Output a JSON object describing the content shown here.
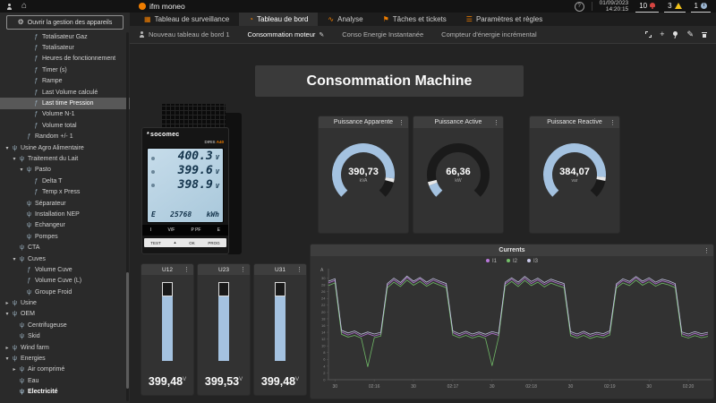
{
  "topbar": {
    "app_name": "ifm moneo",
    "date": "01/09/2023",
    "time": "14:20:15",
    "help_label": "?",
    "badges": [
      {
        "count": "10",
        "icon": "bell-icon",
        "color": "#d64541"
      },
      {
        "count": "3",
        "icon": "warning-icon",
        "color": "#f2c21b"
      },
      {
        "count": "1",
        "icon": "info-icon",
        "color": "#9ab4cf"
      }
    ]
  },
  "nav": {
    "tabs": [
      {
        "label": "Tableau de surveillance",
        "icon": "grid",
        "active": false
      },
      {
        "label": "Tableau de bord",
        "icon": "dashboard",
        "active": true
      },
      {
        "label": "Analyse",
        "icon": "analyse",
        "active": false
      },
      {
        "label": "Tâches et tickets",
        "icon": "tickets",
        "active": false
      },
      {
        "label": "Paramètres et règles",
        "icon": "settings",
        "active": false
      }
    ],
    "accent_color": "#ef7d00"
  },
  "sidebar": {
    "button_label": "Ouvrir la gestion des appareils",
    "items": [
      {
        "label": "Totalisateur Gaz",
        "indent": 3,
        "icon": "fx"
      },
      {
        "label": "Totalisateur",
        "indent": 3,
        "icon": "fx"
      },
      {
        "label": "Heures de fonctionnement",
        "indent": 3,
        "icon": "fx"
      },
      {
        "label": "Timer (s)",
        "indent": 3,
        "icon": "fx"
      },
      {
        "label": "Rampe",
        "indent": 3,
        "icon": "fx"
      },
      {
        "label": "Last Volume calculé",
        "indent": 3,
        "icon": "fx"
      },
      {
        "label": "Last time Pression",
        "indent": 3,
        "icon": "fx",
        "selected": true
      },
      {
        "label": "Volume N-1",
        "indent": 3,
        "icon": "fx"
      },
      {
        "label": "Volume total",
        "indent": 3,
        "icon": "fx"
      },
      {
        "label": "Random +/- 1",
        "indent": 2,
        "icon": "fx"
      },
      {
        "label": "Usine Agro Alimentaire",
        "indent": 0,
        "icon": "node",
        "arrow": "open"
      },
      {
        "label": "Traitement du Lait",
        "indent": 1,
        "icon": "node",
        "arrow": "open"
      },
      {
        "label": "Pasto",
        "indent": 2,
        "icon": "node",
        "arrow": "open"
      },
      {
        "label": "Delta T",
        "indent": 3,
        "icon": "fx"
      },
      {
        "label": "Temp x Press",
        "indent": 3,
        "icon": "fx"
      },
      {
        "label": "Séparateur",
        "indent": 2,
        "icon": "node"
      },
      {
        "label": "Installation NEP",
        "indent": 2,
        "icon": "node"
      },
      {
        "label": "Echangeur",
        "indent": 2,
        "icon": "node"
      },
      {
        "label": "Pompes",
        "indent": 2,
        "icon": "node"
      },
      {
        "label": "CTA",
        "indent": 1,
        "icon": "node"
      },
      {
        "label": "Cuves",
        "indent": 1,
        "icon": "node",
        "arrow": "open"
      },
      {
        "label": "Volume Cuve",
        "indent": 2,
        "icon": "fx"
      },
      {
        "label": "Volume Cuve (L)",
        "indent": 2,
        "icon": "fx"
      },
      {
        "label": "Groupe Froid",
        "indent": 2,
        "icon": "node"
      },
      {
        "label": "Usine",
        "indent": 0,
        "icon": "node",
        "arrow": "closed"
      },
      {
        "label": "OEM",
        "indent": 0,
        "icon": "node",
        "arrow": "open"
      },
      {
        "label": "Centrifugeuse",
        "indent": 1,
        "icon": "node"
      },
      {
        "label": "Skid",
        "indent": 1,
        "icon": "node"
      },
      {
        "label": "Wind farm",
        "indent": 0,
        "icon": "node",
        "arrow": "closed"
      },
      {
        "label": "Energies",
        "indent": 0,
        "icon": "node",
        "arrow": "open"
      },
      {
        "label": "Air comprimé",
        "indent": 1,
        "icon": "node",
        "arrow": "closed"
      },
      {
        "label": "Eau",
        "indent": 1,
        "icon": "node"
      },
      {
        "label": "Electricité",
        "indent": 1,
        "icon": "node",
        "bold": true
      }
    ]
  },
  "dashboard": {
    "tabs": [
      {
        "label": "Nouveau tableau de bord 1",
        "icon": "person",
        "active": false
      },
      {
        "label": "Consommation moteur",
        "icon": "pencil",
        "active": true
      },
      {
        "label": "Conso Energie Instantanée",
        "active": false
      },
      {
        "label": "Compteur d'énergie incrémental",
        "active": false
      }
    ],
    "toolbar_icons": [
      "fullscreen",
      "add",
      "pin",
      "edit",
      "delete"
    ],
    "title": "Consommation Machine",
    "gauges": [
      {
        "title": "Puissance Apparente",
        "value": "390,73",
        "unit": "kVA",
        "fraction": 0.86
      },
      {
        "title": "Puissance Active",
        "value": "66,36",
        "unit": "kW",
        "fraction": 0.09
      },
      {
        "title": "Puissance Reactive",
        "value": "384,07",
        "unit": "var",
        "fraction": 0.85
      }
    ],
    "gauge_colors": {
      "fill": "#a4c2e0",
      "rest": "#1a1a1a",
      "notch": "#e8e8e8"
    },
    "bars": [
      {
        "title": "U12",
        "value": "399,48",
        "unit": "V",
        "fraction": 0.82
      },
      {
        "title": "U23",
        "value": "399,53",
        "unit": "V",
        "fraction": 0.82
      },
      {
        "title": "U31",
        "value": "399,48",
        "unit": "V",
        "fraction": 0.82
      }
    ],
    "device": {
      "brand": "socomec",
      "model_brand": "DIRIS",
      "model_series": "A40",
      "lcd_rows": [
        {
          "value": "400.3",
          "unit": "V"
        },
        {
          "value": "399.6",
          "unit": "V"
        },
        {
          "value": "398.9",
          "unit": "V"
        }
      ],
      "energy": {
        "label": "E",
        "value": "25768",
        "unit": "kWh"
      },
      "buttons": [
        "I",
        "V/F",
        "P PF",
        "E"
      ],
      "keys": [
        "TEST",
        "▴",
        "OK",
        "PROG"
      ]
    }
  },
  "chart_data": {
    "type": "line",
    "title": "Currents",
    "ylabel": "A",
    "ylim": [
      0,
      32
    ],
    "ytick_step": 2,
    "ytick_max": 30,
    "t_step_s": 5,
    "t_max_s": 290,
    "x_ticks": [
      {
        "t": 5,
        "label": "30"
      },
      {
        "t": 35,
        "label": "02:16"
      },
      {
        "t": 65,
        "label": "30"
      },
      {
        "t": 95,
        "label": "02:17"
      },
      {
        "t": 125,
        "label": "30"
      },
      {
        "t": 155,
        "label": "02:18"
      },
      {
        "t": 185,
        "label": "30"
      },
      {
        "t": 215,
        "label": "02:19"
      },
      {
        "t": 245,
        "label": "30"
      },
      {
        "t": 275,
        "label": "02:20"
      }
    ],
    "legend_position": "top-center",
    "grid": false,
    "series": [
      {
        "name": "I1",
        "color": "#b877d9",
        "values": [
          28.6,
          29.3,
          14.1,
          13.2,
          13.9,
          12.8,
          13.6,
          12.9,
          13.5,
          27.9,
          29.5,
          28.1,
          30.2,
          28.6,
          29.8,
          28.2,
          29.4,
          28.6,
          27.8,
          13.9,
          13.0,
          13.8,
          12.9,
          13.6,
          12.8,
          13.7,
          13.1,
          28.3,
          29.7,
          28.2,
          30.0,
          28.4,
          29.5,
          28.1,
          29.2,
          28.5,
          27.9,
          13.7,
          12.9,
          13.8,
          12.8,
          13.5,
          13.0,
          13.9,
          27.8,
          29.3,
          28.5,
          30.1,
          28.6,
          29.6,
          28.3,
          29.2,
          28.7,
          27.9,
          13.6,
          12.9,
          13.7,
          13.0,
          13.5
        ]
      },
      {
        "name": "I2",
        "color": "#73bf69",
        "values": [
          27.8,
          28.6,
          13.4,
          12.6,
          13.1,
          12.3,
          3.8,
          12.4,
          12.9,
          27.2,
          28.8,
          27.5,
          29.4,
          27.9,
          29.0,
          27.6,
          28.7,
          27.9,
          27.2,
          13.2,
          12.4,
          13.1,
          12.3,
          12.9,
          12.2,
          4.1,
          12.5,
          27.6,
          29.0,
          27.5,
          29.3,
          27.8,
          28.8,
          27.4,
          28.5,
          27.8,
          27.2,
          13.0,
          12.3,
          13.1,
          12.2,
          12.8,
          12.4,
          13.2,
          27.1,
          28.6,
          27.8,
          29.4,
          27.9,
          28.9,
          27.6,
          28.5,
          28.0,
          27.2,
          12.9,
          12.3,
          13.0,
          12.4,
          12.8
        ]
      },
      {
        "name": "I3",
        "color": "#c9c9ea",
        "values": [
          29.1,
          29.8,
          14.6,
          13.8,
          14.4,
          13.4,
          14.1,
          13.5,
          14.0,
          28.4,
          30.0,
          28.7,
          30.6,
          29.1,
          30.2,
          28.8,
          29.9,
          29.1,
          28.4,
          14.4,
          13.6,
          14.3,
          13.5,
          14.1,
          13.4,
          14.2,
          13.7,
          28.8,
          30.1,
          28.8,
          30.5,
          29.0,
          30.0,
          28.7,
          29.7,
          29.0,
          28.4,
          14.2,
          13.5,
          14.3,
          13.4,
          14.0,
          13.6,
          14.4,
          28.3,
          29.8,
          29.0,
          30.5,
          29.1,
          30.1,
          28.8,
          29.7,
          29.2,
          28.4,
          14.1,
          13.5,
          14.2,
          13.6,
          14.0
        ]
      }
    ]
  }
}
